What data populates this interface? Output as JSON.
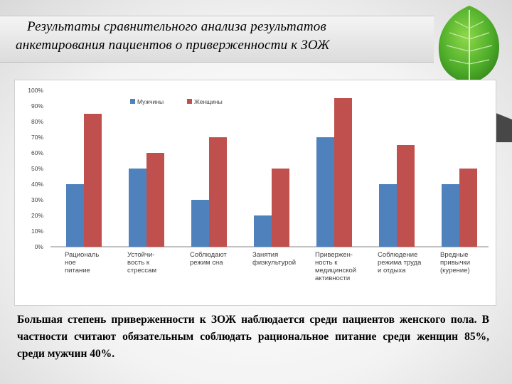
{
  "title": {
    "line1": "Результаты сравнительного анализа результатов",
    "line2": "анкетирования пациентов о приверженности к ЗОЖ"
  },
  "chart_data": {
    "type": "bar",
    "categories": [
      [
        "Рациональ",
        "ное",
        "питание"
      ],
      [
        "Устойчи-",
        "вость к",
        "стрессам"
      ],
      [
        "Соблюдают",
        "режим сна"
      ],
      [
        "Занятия",
        "физкультурой"
      ],
      [
        "Привержен-",
        "ность к",
        "медицинской",
        "активности"
      ],
      [
        "Соблюдение",
        "режима труда",
        "и отдыха"
      ],
      [
        "Вредные",
        "привычки",
        "(курение)"
      ]
    ],
    "series": [
      {
        "name": "Мужчины",
        "color": "#4f81bd",
        "values": [
          40,
          50,
          30,
          20,
          70,
          40,
          40
        ]
      },
      {
        "name": "Женщины",
        "color": "#c0504d",
        "values": [
          85,
          60,
          70,
          50,
          95,
          65,
          50
        ]
      }
    ],
    "y_ticks": [
      "0%",
      "10%",
      "20%",
      "30%",
      "40%",
      "50%",
      "60%",
      "70%",
      "80%",
      "90%",
      "100%"
    ],
    "ylim": [
      0,
      100
    ],
    "grid": false,
    "legend_position": "top"
  },
  "description": "Большая степень приверженности к ЗОЖ наблюдается среди пациентов женского пола. В частности считают обязательным соблюдать рациональное питание среди женщин 85%, среди мужчин 40%.",
  "colors": {
    "leaf": "#5bb832",
    "axis": "#868686"
  }
}
